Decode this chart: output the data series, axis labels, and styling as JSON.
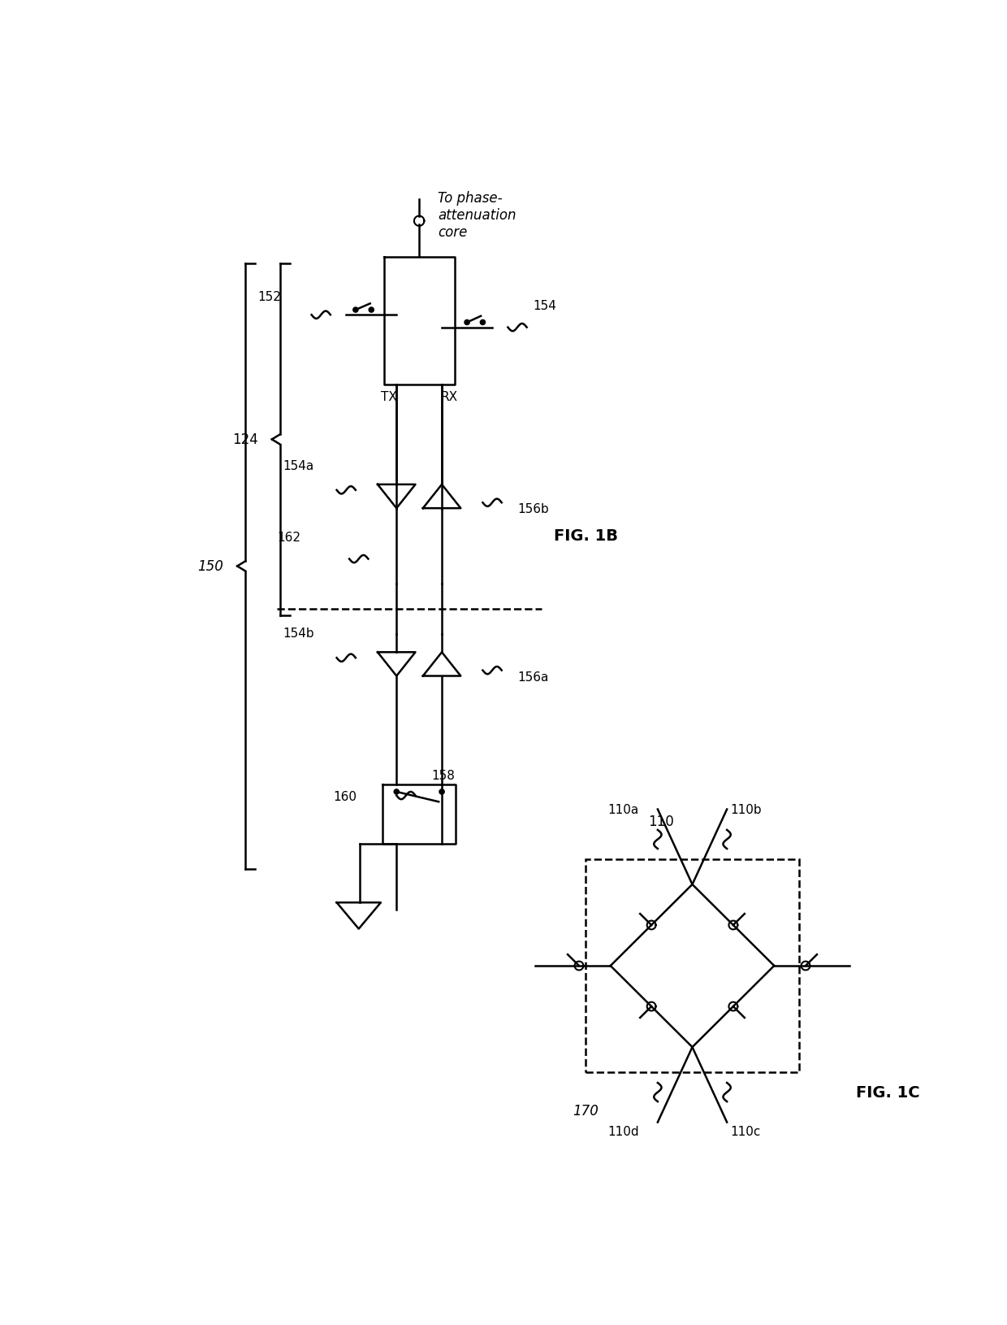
{
  "bg_color": "#ffffff",
  "fig_width": 12.4,
  "fig_height": 16.31,
  "labels": {
    "fig1b": "FIG. 1B",
    "fig1c": "FIG. 1C",
    "label_124": "124",
    "label_150": "150",
    "label_152": "152",
    "label_154": "154",
    "label_154a": "154a",
    "label_154b": "154b",
    "label_156a": "156a",
    "label_156b": "156b",
    "label_158": "158",
    "label_160": "160",
    "label_162": "162",
    "label_170": "170",
    "label_110": "110",
    "label_110a": "110a",
    "label_110b": "110b",
    "label_110c": "110c",
    "label_110d": "110d",
    "label_TX": "TX",
    "label_RX": "RX",
    "label_to_phase": "To phase-\nattenuation\ncore"
  }
}
